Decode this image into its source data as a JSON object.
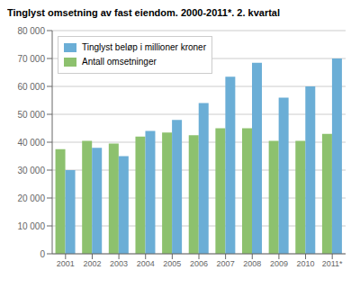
{
  "chart_data": {
    "type": "bar",
    "title": "Tinglyst omsetning av fast eiendom. 2000-2011*. 2. kvartal",
    "categories": [
      "2001",
      "2002",
      "2003",
      "2004",
      "2005",
      "2006",
      "2007",
      "2008",
      "2009",
      "2010",
      "2011*"
    ],
    "series": [
      {
        "name": "Antall omsetninger",
        "color": "#8dc16e",
        "values": [
          37500,
          40500,
          39500,
          42000,
          43500,
          42500,
          45000,
          45000,
          40500,
          40500,
          43000
        ]
      },
      {
        "name": "Tinglyst beløp i millioner kroner",
        "color": "#6baed6",
        "values": [
          30000,
          38000,
          35000,
          44000,
          48000,
          54000,
          63500,
          68500,
          56000,
          60000,
          70000
        ]
      }
    ],
    "ylim": [
      0,
      80000
    ],
    "yticks": [
      0,
      {
        "value": 10000,
        "label": "10 000"
      },
      {
        "value": 20000,
        "label": "20 000"
      },
      {
        "value": 30000,
        "label": "30 000"
      },
      {
        "value": 40000,
        "label": "40 000"
      },
      {
        "value": 50000,
        "label": "50 000"
      },
      {
        "value": 60000,
        "label": "60 000"
      },
      {
        "value": 70000,
        "label": "70 000"
      },
      {
        "value": 80000,
        "label": "80 000"
      }
    ],
    "grid": true,
    "legend": "upper left"
  }
}
